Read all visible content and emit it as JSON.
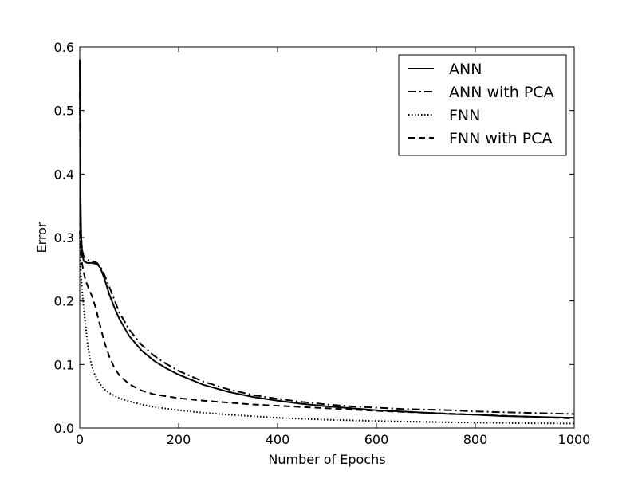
{
  "chart_data": {
    "type": "line",
    "title": "",
    "xlabel": "Number of Epochs",
    "ylabel": "Error",
    "xlim": [
      0,
      1000
    ],
    "ylim": [
      0,
      0.6
    ],
    "x_ticks": [
      0,
      200,
      400,
      600,
      800,
      1000
    ],
    "y_ticks": [
      0.0,
      0.1,
      0.2,
      0.3,
      0.4,
      0.5,
      0.6
    ],
    "x_tick_labels": [
      "0",
      "200",
      "400",
      "600",
      "800",
      "1000"
    ],
    "y_tick_labels": [
      "0.0",
      "0.1",
      "0.2",
      "0.3",
      "0.4",
      "0.5",
      "0.6"
    ],
    "grid": false,
    "legend_position": "top-right",
    "series": [
      {
        "name": "ANN",
        "style": "solid",
        "color": "#000000",
        "points": [
          [
            0,
            0.58
          ],
          [
            1,
            0.42
          ],
          [
            2,
            0.34
          ],
          [
            3,
            0.3
          ],
          [
            5,
            0.275
          ],
          [
            8,
            0.263
          ],
          [
            15,
            0.26
          ],
          [
            25,
            0.26
          ],
          [
            35,
            0.258
          ],
          [
            42,
            0.252
          ],
          [
            50,
            0.235
          ],
          [
            60,
            0.21
          ],
          [
            70,
            0.19
          ],
          [
            80,
            0.172
          ],
          [
            100,
            0.145
          ],
          [
            125,
            0.122
          ],
          [
            150,
            0.106
          ],
          [
            175,
            0.094
          ],
          [
            200,
            0.084
          ],
          [
            250,
            0.068
          ],
          [
            300,
            0.057
          ],
          [
            350,
            0.049
          ],
          [
            400,
            0.043
          ],
          [
            450,
            0.038
          ],
          [
            500,
            0.034
          ],
          [
            550,
            0.031
          ],
          [
            600,
            0.028
          ],
          [
            650,
            0.026
          ],
          [
            700,
            0.024
          ],
          [
            750,
            0.022
          ],
          [
            800,
            0.021
          ],
          [
            850,
            0.019
          ],
          [
            900,
            0.018
          ],
          [
            950,
            0.017
          ],
          [
            1000,
            0.016
          ]
        ]
      },
      {
        "name": "ANN with PCA",
        "style": "dashdot",
        "color": "#000000",
        "points": [
          [
            0,
            0.53
          ],
          [
            1,
            0.4
          ],
          [
            2,
            0.33
          ],
          [
            3,
            0.3
          ],
          [
            5,
            0.28
          ],
          [
            8,
            0.27
          ],
          [
            15,
            0.265
          ],
          [
            25,
            0.263
          ],
          [
            35,
            0.26
          ],
          [
            45,
            0.25
          ],
          [
            55,
            0.232
          ],
          [
            65,
            0.212
          ],
          [
            80,
            0.182
          ],
          [
            100,
            0.155
          ],
          [
            125,
            0.131
          ],
          [
            150,
            0.114
          ],
          [
            175,
            0.101
          ],
          [
            200,
            0.09
          ],
          [
            250,
            0.073
          ],
          [
            300,
            0.061
          ],
          [
            350,
            0.052
          ],
          [
            400,
            0.046
          ],
          [
            450,
            0.041
          ],
          [
            500,
            0.037
          ],
          [
            550,
            0.034
          ],
          [
            600,
            0.032
          ],
          [
            650,
            0.03
          ],
          [
            700,
            0.029
          ],
          [
            750,
            0.028
          ],
          [
            800,
            0.026
          ],
          [
            850,
            0.025
          ],
          [
            900,
            0.024
          ],
          [
            950,
            0.023
          ],
          [
            1000,
            0.022
          ]
        ]
      },
      {
        "name": "FNN",
        "style": "dotted",
        "color": "#000000",
        "points": [
          [
            0,
            0.3
          ],
          [
            2,
            0.245
          ],
          [
            5,
            0.215
          ],
          [
            8,
            0.19
          ],
          [
            12,
            0.16
          ],
          [
            16,
            0.132
          ],
          [
            20,
            0.112
          ],
          [
            25,
            0.096
          ],
          [
            30,
            0.085
          ],
          [
            40,
            0.07
          ],
          [
            50,
            0.061
          ],
          [
            60,
            0.055
          ],
          [
            80,
            0.047
          ],
          [
            100,
            0.042
          ],
          [
            125,
            0.037
          ],
          [
            150,
            0.033
          ],
          [
            200,
            0.028
          ],
          [
            250,
            0.024
          ],
          [
            300,
            0.021
          ],
          [
            400,
            0.016
          ],
          [
            500,
            0.013
          ],
          [
            600,
            0.011
          ],
          [
            700,
            0.0095
          ],
          [
            800,
            0.0085
          ],
          [
            900,
            0.0075
          ],
          [
            1000,
            0.007
          ]
        ]
      },
      {
        "name": "FNN with PCA",
        "style": "dashed",
        "color": "#000000",
        "points": [
          [
            0,
            0.31
          ],
          [
            2,
            0.28
          ],
          [
            4,
            0.262
          ],
          [
            8,
            0.245
          ],
          [
            12,
            0.232
          ],
          [
            18,
            0.22
          ],
          [
            25,
            0.207
          ],
          [
            32,
            0.19
          ],
          [
            40,
            0.165
          ],
          [
            50,
            0.135
          ],
          [
            60,
            0.112
          ],
          [
            70,
            0.095
          ],
          [
            80,
            0.083
          ],
          [
            100,
            0.069
          ],
          [
            125,
            0.059
          ],
          [
            150,
            0.053
          ],
          [
            200,
            0.047
          ],
          [
            250,
            0.043
          ],
          [
            300,
            0.04
          ],
          [
            350,
            0.037
          ],
          [
            400,
            0.035
          ],
          [
            450,
            0.033
          ],
          [
            500,
            0.031
          ],
          [
            550,
            0.029
          ],
          [
            600,
            0.027
          ],
          [
            700,
            0.024
          ],
          [
            800,
            0.021
          ],
          [
            900,
            0.018
          ],
          [
            1000,
            0.015
          ]
        ]
      }
    ]
  }
}
